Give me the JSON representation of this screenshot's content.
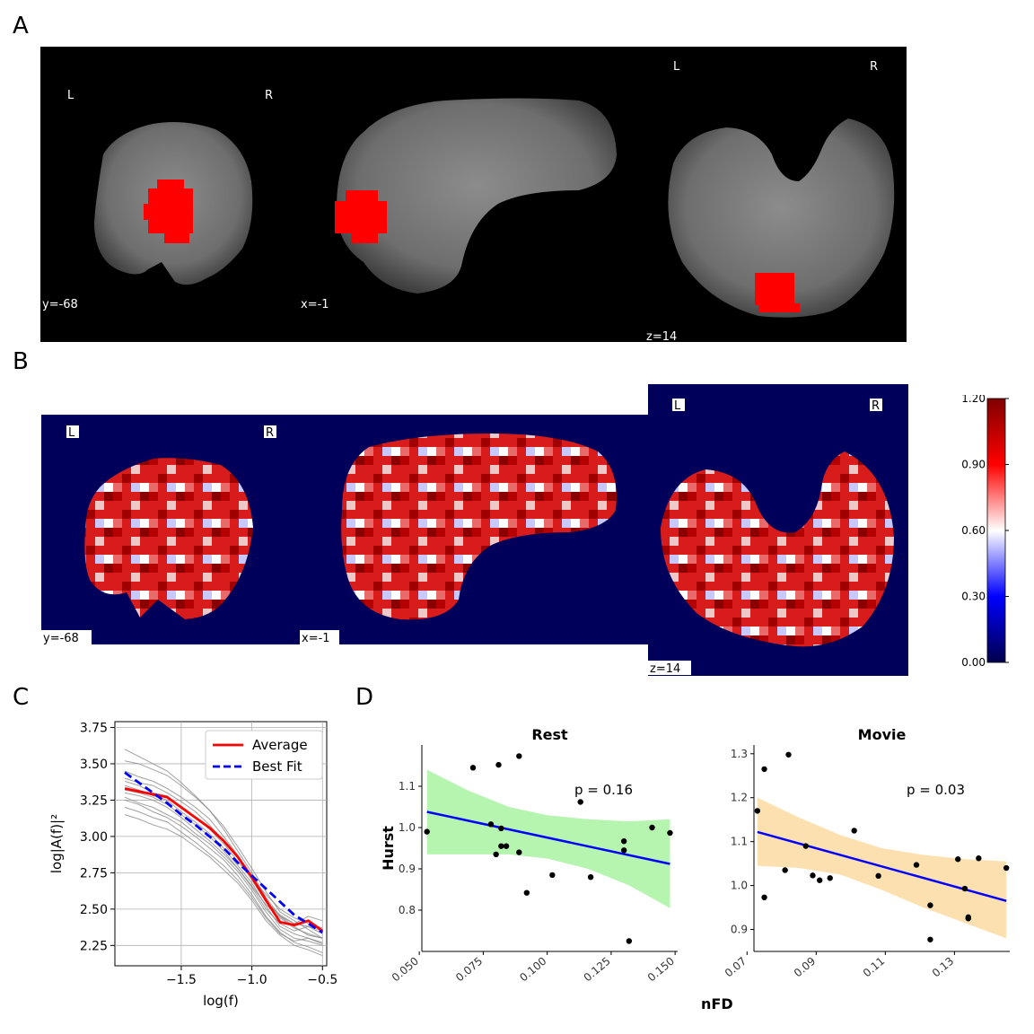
{
  "panels": {
    "a": "A",
    "b": "B",
    "c": "C",
    "d": "D"
  },
  "panel_a": {
    "labels": {
      "left": "L",
      "right": "R"
    },
    "coords": {
      "coronal": "y=-68",
      "sagittal": "x=-1",
      "axial": "z=14"
    },
    "overlay_color": "#ff0000",
    "background": "#000000"
  },
  "panel_b": {
    "labels": {
      "left": "L",
      "right": "R"
    },
    "coords": {
      "coronal": "y=-68",
      "sagittal": "x=-1",
      "axial": "z=14"
    },
    "colorbar": {
      "ticks": [
        "1.20",
        "0.90",
        "0.60",
        "0.30",
        "0.00"
      ],
      "colormap": "seismic",
      "range": [
        0.0,
        1.2
      ]
    },
    "background": "#00005a"
  },
  "chart_data": [
    {
      "type": "line",
      "panel": "C",
      "title": "",
      "xlabel": "log(f)",
      "ylabel": "log|A(f)|²",
      "xlim": [
        -1.97,
        -0.47
      ],
      "ylim": [
        2.11,
        3.79
      ],
      "xticks": [
        -1.5,
        -1.0,
        -0.5
      ],
      "xtick_labels": [
        "−1.5",
        "−1.0",
        "−0.5"
      ],
      "yticks": [
        2.25,
        2.5,
        2.75,
        3.0,
        3.25,
        3.5,
        3.75
      ],
      "ytick_labels": [
        "2.25",
        "2.50",
        "2.75",
        "3.00",
        "3.25",
        "3.50",
        "3.75"
      ],
      "grid": true,
      "legend": {
        "position": "top-right",
        "entries": [
          "Average",
          "Best Fit"
        ]
      },
      "x": [
        -1.9,
        -1.8,
        -1.7,
        -1.6,
        -1.5,
        -1.4,
        -1.3,
        -1.2,
        -1.1,
        -1.0,
        -0.9,
        -0.8,
        -0.7,
        -0.6,
        -0.5
      ],
      "series": [
        {
          "name": "Average",
          "color": "#ff0000",
          "style": "solid",
          "values": [
            3.33,
            3.31,
            3.29,
            3.27,
            3.2,
            3.13,
            3.06,
            2.97,
            2.86,
            2.72,
            2.56,
            2.41,
            2.39,
            2.42,
            2.35
          ]
        },
        {
          "name": "Best Fit",
          "color": "#0000ff",
          "style": "dashed",
          "values": [
            3.44,
            3.37,
            3.3,
            3.23,
            3.15,
            3.08,
            3.0,
            2.92,
            2.82,
            2.73,
            2.64,
            2.55,
            2.46,
            2.4,
            2.34
          ]
        }
      ],
      "subject_lines": {
        "color": "#888888",
        "values": [
          [
            3.52,
            3.5,
            3.46,
            3.42,
            3.35,
            3.27,
            3.18,
            3.05,
            2.9,
            2.75,
            2.58,
            2.45,
            2.4,
            2.38,
            2.33
          ],
          [
            3.45,
            3.41,
            3.38,
            3.33,
            3.27,
            3.2,
            3.12,
            3.0,
            2.87,
            2.72,
            2.55,
            2.45,
            2.38,
            2.32,
            2.3
          ],
          [
            3.4,
            3.37,
            3.35,
            3.3,
            3.24,
            3.17,
            3.08,
            2.97,
            2.85,
            2.7,
            2.55,
            2.46,
            2.4,
            2.45,
            2.42
          ],
          [
            3.35,
            3.32,
            3.28,
            3.25,
            3.17,
            3.1,
            3.02,
            2.92,
            2.8,
            2.68,
            2.52,
            2.38,
            2.33,
            2.3,
            2.26
          ],
          [
            3.3,
            3.28,
            3.25,
            3.2,
            3.13,
            3.05,
            2.97,
            2.88,
            2.78,
            2.65,
            2.5,
            2.4,
            2.35,
            2.38,
            2.35
          ],
          [
            3.27,
            3.23,
            3.2,
            3.15,
            3.1,
            3.02,
            2.95,
            2.86,
            2.76,
            2.63,
            2.48,
            2.36,
            2.3,
            2.28,
            2.25
          ],
          [
            3.25,
            3.22,
            3.17,
            3.13,
            3.07,
            3.0,
            2.92,
            2.84,
            2.73,
            2.6,
            2.45,
            2.34,
            2.27,
            2.24,
            2.2
          ],
          [
            3.2,
            3.17,
            3.13,
            3.1,
            3.03,
            2.96,
            2.88,
            2.8,
            2.7,
            2.58,
            2.44,
            2.33,
            2.28,
            2.3,
            2.27
          ],
          [
            3.15,
            3.12,
            3.08,
            3.05,
            3.0,
            2.93,
            2.86,
            2.77,
            2.68,
            2.56,
            2.42,
            2.32,
            2.25,
            2.22,
            2.18
          ],
          [
            3.38,
            3.35,
            3.3,
            3.28,
            3.2,
            3.13,
            3.05,
            2.95,
            2.83,
            2.71,
            2.6,
            2.5,
            2.44,
            2.4,
            2.37
          ],
          [
            3.32,
            3.3,
            3.27,
            3.22,
            3.15,
            3.08,
            3.0,
            2.9,
            2.78,
            2.66,
            2.53,
            2.44,
            2.37,
            2.33,
            2.3
          ],
          [
            3.6,
            3.55,
            3.5,
            3.45,
            3.37,
            3.28,
            3.18,
            3.07,
            2.93,
            2.78,
            2.62,
            2.48,
            2.42,
            2.36,
            2.3
          ]
        ]
      }
    },
    {
      "type": "scatter",
      "panel": "D",
      "title": "Rest",
      "xlabel": "MeanFD",
      "ylabel": "Hurst",
      "xlim": [
        0.051,
        0.151
      ],
      "ylim": [
        0.7,
        1.2
      ],
      "xticks": [
        0.05,
        0.075,
        0.1,
        0.125,
        0.15
      ],
      "xtick_labels": [
        "0.050",
        "0.075",
        "0.100",
        "0.125",
        "0.150"
      ],
      "yticks": [
        0.8,
        0.9,
        1.0,
        1.1
      ],
      "ytick_labels": [
        "0.8",
        "0.9",
        "1.0",
        "1.1"
      ],
      "annotation": "p =  0.16",
      "ci_color": "#b6f5b0",
      "fit_color": "#0000ff",
      "fit": {
        "x": [
          0.053,
          0.148
        ],
        "y": [
          1.038,
          0.912
        ]
      },
      "ci_upper": [
        1.14,
        1.09,
        1.05,
        1.03,
        1.02,
        1.015,
        1.02
      ],
      "ci_lower": [
        0.935,
        0.935,
        0.935,
        0.925,
        0.9,
        0.86,
        0.805
      ],
      "ci_x": [
        0.053,
        0.069,
        0.085,
        0.1,
        0.116,
        0.132,
        0.148
      ],
      "points": [
        {
          "x": 0.053,
          "y": 0.99
        },
        {
          "x": 0.071,
          "y": 1.145
        },
        {
          "x": 0.078,
          "y": 1.008
        },
        {
          "x": 0.08,
          "y": 0.935
        },
        {
          "x": 0.081,
          "y": 1.152
        },
        {
          "x": 0.082,
          "y": 0.998
        },
        {
          "x": 0.082,
          "y": 0.955
        },
        {
          "x": 0.084,
          "y": 0.955
        },
        {
          "x": 0.089,
          "y": 0.94
        },
        {
          "x": 0.089,
          "y": 1.173
        },
        {
          "x": 0.092,
          "y": 0.842
        },
        {
          "x": 0.102,
          "y": 0.885
        },
        {
          "x": 0.113,
          "y": 1.062
        },
        {
          "x": 0.117,
          "y": 0.88
        },
        {
          "x": 0.13,
          "y": 0.945
        },
        {
          "x": 0.13,
          "y": 0.967
        },
        {
          "x": 0.132,
          "y": 0.725
        },
        {
          "x": 0.141,
          "y": 1.0
        },
        {
          "x": 0.148,
          "y": 0.987
        }
      ]
    },
    {
      "type": "scatter",
      "panel": "D",
      "title": "Movie",
      "xlabel": "MeanFD",
      "ylabel": "",
      "xlim": [
        0.072,
        0.146
      ],
      "ylim": [
        0.85,
        1.32
      ],
      "xticks": [
        0.07,
        0.09,
        0.11,
        0.13
      ],
      "xtick_labels": [
        "0.07",
        "0.09",
        "0.11",
        "0.13"
      ],
      "yticks": [
        0.9,
        1.0,
        1.1,
        1.2,
        1.3
      ],
      "ytick_labels": [
        "0.9",
        "1.0",
        "1.1",
        "1.2",
        "1.3"
      ],
      "annotation": "p =  0.03",
      "ci_color": "#fde0b0",
      "fit_color": "#0000ff",
      "fit": {
        "x": [
          0.073,
          0.145
        ],
        "y": [
          1.122,
          0.965
        ]
      },
      "ci_upper": [
        1.2,
        1.155,
        1.115,
        1.085,
        1.07,
        1.06,
        1.055
      ],
      "ci_lower": [
        1.045,
        1.04,
        1.025,
        0.99,
        0.95,
        0.915,
        0.88
      ],
      "ci_x": [
        0.073,
        0.085,
        0.097,
        0.109,
        0.121,
        0.133,
        0.145
      ],
      "points": [
        {
          "x": 0.073,
          "y": 1.17
        },
        {
          "x": 0.075,
          "y": 1.265
        },
        {
          "x": 0.075,
          "y": 0.973
        },
        {
          "x": 0.081,
          "y": 1.035
        },
        {
          "x": 0.082,
          "y": 1.298
        },
        {
          "x": 0.087,
          "y": 1.09
        },
        {
          "x": 0.089,
          "y": 1.023
        },
        {
          "x": 0.091,
          "y": 1.012
        },
        {
          "x": 0.094,
          "y": 1.017
        },
        {
          "x": 0.101,
          "y": 1.125
        },
        {
          "x": 0.108,
          "y": 1.022
        },
        {
          "x": 0.119,
          "y": 1.047
        },
        {
          "x": 0.123,
          "y": 0.955
        },
        {
          "x": 0.123,
          "y": 0.877
        },
        {
          "x": 0.131,
          "y": 1.06
        },
        {
          "x": 0.133,
          "y": 0.993
        },
        {
          "x": 0.134,
          "y": 0.925
        },
        {
          "x": 0.134,
          "y": 0.928
        },
        {
          "x": 0.137,
          "y": 1.062
        },
        {
          "x": 0.145,
          "y": 1.04
        }
      ]
    }
  ]
}
